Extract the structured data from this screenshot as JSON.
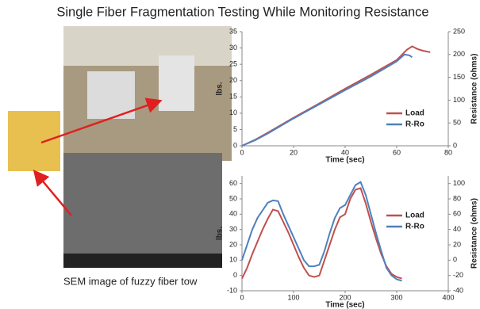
{
  "title": "Single Fiber Fragmentation Testing While Monitoring Resistance",
  "caption": "SEM image of fuzzy fiber tow",
  "chart_data": [
    {
      "type": "line",
      "xlabel": "Time (sec)",
      "ylabel": "lbs.",
      "y2label": "Resistance (ohms)",
      "xlim": [
        0,
        80
      ],
      "xticks": [
        0,
        20,
        40,
        60,
        80
      ],
      "ylim": [
        0,
        35
      ],
      "yticks": [
        0,
        5,
        10,
        15,
        20,
        25,
        30,
        35
      ],
      "y2lim": [
        0,
        250
      ],
      "y2ticks": [
        0,
        50,
        100,
        150,
        200,
        250
      ],
      "grid": false,
      "legend": "right",
      "series": [
        {
          "name": "Load",
          "color": "#c0504d",
          "axis": "y",
          "x": [
            0,
            5,
            10,
            20,
            30,
            40,
            50,
            60,
            64,
            66,
            68,
            70,
            73
          ],
          "values": [
            0,
            1.8,
            4,
            8.6,
            13,
            17.5,
            21.8,
            26.3,
            29.5,
            30.5,
            29.7,
            29.2,
            28.7
          ]
        },
        {
          "name": "R-Ro",
          "color": "#4f81bd",
          "axis": "y2",
          "x": [
            0,
            5,
            10,
            20,
            30,
            40,
            50,
            60,
            63,
            65,
            66
          ],
          "values": [
            0,
            12,
            27,
            60,
            91,
            122,
            152,
            185,
            200,
            198,
            194
          ]
        }
      ]
    },
    {
      "type": "line",
      "xlabel": "Time (sec)",
      "ylabel": "lbs.",
      "y2label": "Resistance (ohms)",
      "xlim": [
        0,
        400
      ],
      "xticks": [
        0,
        100,
        200,
        300,
        400
      ],
      "ylim": [
        -10,
        65
      ],
      "yticks": [
        -10,
        0,
        10,
        20,
        30,
        40,
        50,
        60
      ],
      "y2lim": [
        -40,
        110
      ],
      "y2ticks": [
        -40,
        -20,
        0,
        20,
        40,
        60,
        80,
        100
      ],
      "grid": false,
      "legend": "right",
      "series": [
        {
          "name": "Load",
          "color": "#c0504d",
          "axis": "y",
          "x": [
            0,
            10,
            20,
            30,
            40,
            50,
            60,
            70,
            80,
            90,
            100,
            110,
            120,
            130,
            140,
            150,
            160,
            170,
            180,
            190,
            200,
            210,
            220,
            230,
            240,
            250,
            260,
            270,
            280,
            290,
            300,
            310
          ],
          "values": [
            -2,
            5,
            14,
            22,
            30,
            37,
            43,
            42,
            35,
            28,
            20,
            12,
            5,
            0,
            -1,
            0,
            10,
            20,
            30,
            38,
            40,
            50,
            56,
            57,
            47,
            35,
            24,
            14,
            6,
            1,
            -1,
            -2
          ]
        },
        {
          "name": "R-Ro",
          "color": "#4f81bd",
          "axis": "y2",
          "x": [
            0,
            10,
            20,
            30,
            40,
            50,
            60,
            70,
            80,
            90,
            100,
            110,
            120,
            130,
            140,
            150,
            160,
            170,
            180,
            190,
            200,
            210,
            220,
            230,
            240,
            250,
            260,
            270,
            280,
            290,
            300,
            310
          ],
          "values": [
            0,
            20,
            40,
            55,
            65,
            75,
            78,
            77,
            60,
            45,
            30,
            15,
            0,
            -8,
            -8,
            -6,
            12,
            35,
            55,
            68,
            72,
            85,
            98,
            102,
            85,
            60,
            35,
            12,
            -10,
            -20,
            -25,
            -27
          ]
        }
      ]
    }
  ]
}
